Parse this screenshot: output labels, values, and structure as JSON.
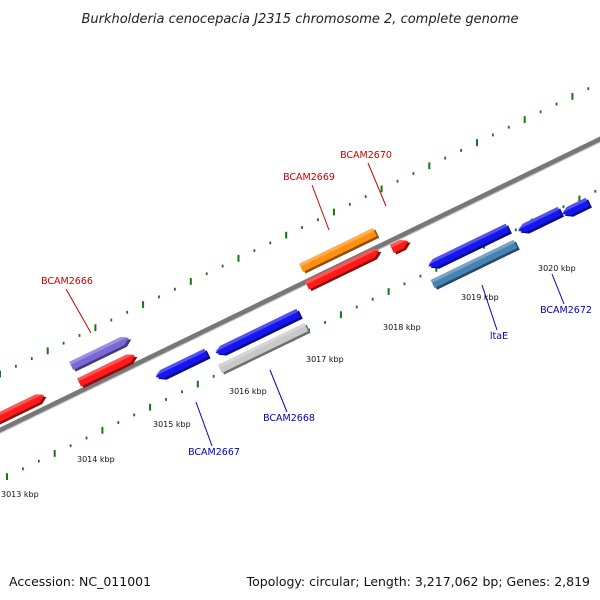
{
  "title": "Burkholderia cenocepacia J2315 chromosome 2, complete genome",
  "footer": {
    "accession": "Accession: NC_011001",
    "summary": "Topology: circular; Length: 3,217,062 bp; Genes: 2,819"
  },
  "colors": {
    "forward_label": "#cc0000",
    "reverse_label": "#0000bb",
    "backbone": "#777777",
    "tick": "#117711"
  },
  "scale": {
    "ticks": [
      {
        "label": "3013 kbp"
      },
      {
        "label": "3014 kbp"
      },
      {
        "label": "3015 kbp"
      },
      {
        "label": "3016 kbp"
      },
      {
        "label": "3017 kbp"
      },
      {
        "label": "3018 kbp"
      },
      {
        "label": "3019 kbp"
      },
      {
        "label": "3020 kbp"
      }
    ]
  },
  "genes": [
    {
      "id": "gene-unlabeled-1",
      "name": "",
      "strand": "forward",
      "color": "#ff1a1a"
    },
    {
      "id": "gene-bcam2666",
      "name": "BCAM2666",
      "strand": "forward",
      "color": "#7b68d8"
    },
    {
      "id": "gene-unlabeled-2",
      "name": "",
      "strand": "forward",
      "color": "#ff1a1a"
    },
    {
      "id": "gene-bcam2669",
      "name": "BCAM2669",
      "strand": "forward",
      "color": "#ff9010"
    },
    {
      "id": "gene-unlabeled-3",
      "name": "",
      "strand": "forward",
      "color": "#ff1a1a"
    },
    {
      "id": "gene-bcam2670",
      "name": "BCAM2670",
      "strand": "forward",
      "color": "#ff1a1a"
    },
    {
      "id": "gene-bcam2667",
      "name": "BCAM2667",
      "strand": "reverse",
      "color": "#1515ee"
    },
    {
      "id": "gene-unlabeled-4",
      "name": "",
      "strand": "reverse",
      "color": "#1515ee"
    },
    {
      "id": "gene-bcam2668",
      "name": "BCAM2668",
      "strand": "reverse",
      "color": "#c8c8c8"
    },
    {
      "id": "gene-unlabeled-5",
      "name": "",
      "strand": "reverse",
      "color": "#1515ee"
    },
    {
      "id": "gene-itae",
      "name": "ltaE",
      "strand": "reverse",
      "color": "#4682b4"
    },
    {
      "id": "gene-unlabeled-6",
      "name": "",
      "strand": "reverse",
      "color": "#1515ee"
    },
    {
      "id": "gene-bcam2672",
      "name": "BCAM2672",
      "strand": "reverse",
      "color": "#1515ee"
    }
  ]
}
